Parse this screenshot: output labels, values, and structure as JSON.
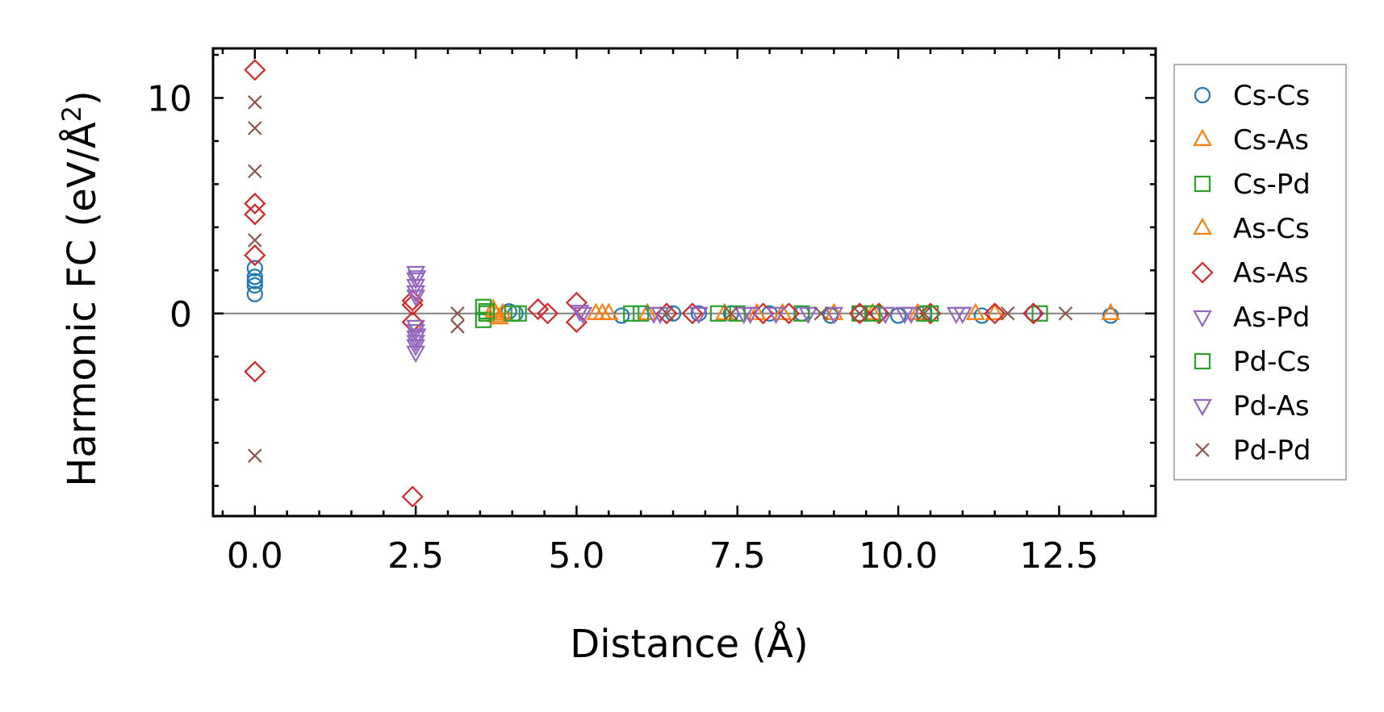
{
  "chart_data": {
    "type": "scatter",
    "title": "",
    "xlabel": "Distance (Å)",
    "ylabel_main": "Harmonic FC (eV/Å",
    "ylabel_sup": "2",
    "ylabel_close": ")",
    "xlim": [
      -0.65,
      14.0
    ],
    "ylim": [
      -9.4,
      12.3
    ],
    "xticks": [
      0.0,
      2.5,
      5.0,
      7.5,
      10.0,
      12.5
    ],
    "xtick_labels": [
      "0.0",
      "2.5",
      "5.0",
      "7.5",
      "10.0",
      "12.5"
    ],
    "yticks": [
      0,
      10
    ],
    "ytick_labels": [
      "0",
      "10"
    ],
    "legend_position": "outside-right",
    "series": [
      {
        "name": "Cs-Cs",
        "marker": "circle",
        "color": "#1f77b4",
        "points": [
          [
            0.0,
            2.1
          ],
          [
            0.0,
            1.7
          ],
          [
            0.0,
            1.5
          ],
          [
            0.0,
            1.3
          ],
          [
            0.0,
            0.9
          ],
          [
            3.95,
            0.1
          ],
          [
            4.05,
            0.0
          ],
          [
            5.7,
            -0.1
          ],
          [
            6.5,
            0.0
          ],
          [
            6.9,
            0.0
          ],
          [
            7.4,
            0.0
          ],
          [
            8.0,
            0.0
          ],
          [
            8.5,
            0.0
          ],
          [
            8.95,
            -0.1
          ],
          [
            9.7,
            0.0
          ],
          [
            10.0,
            -0.1
          ],
          [
            10.4,
            0.0
          ],
          [
            11.3,
            -0.1
          ],
          [
            12.1,
            0.0
          ],
          [
            13.3,
            -0.1
          ]
        ]
      },
      {
        "name": "Cs-As",
        "marker": "triangle-up",
        "color": "#ff7f0e",
        "points": [
          [
            3.7,
            0.2
          ],
          [
            3.75,
            -0.1
          ],
          [
            3.85,
            0.0
          ],
          [
            5.3,
            0.0
          ],
          [
            5.5,
            0.0
          ],
          [
            7.3,
            0.0
          ],
          [
            8.2,
            0.0
          ],
          [
            9.6,
            0.0
          ],
          [
            11.2,
            0.0
          ],
          [
            13.3,
            0.0
          ]
        ]
      },
      {
        "name": "Cs-Pd",
        "marker": "square",
        "color": "#2ca02c",
        "points": [
          [
            3.55,
            0.3
          ],
          [
            3.55,
            -0.3
          ],
          [
            3.6,
            0.0
          ],
          [
            4.1,
            0.0
          ],
          [
            5.85,
            0.0
          ],
          [
            7.2,
            0.0
          ],
          [
            8.5,
            0.0
          ],
          [
            9.4,
            0.0
          ],
          [
            10.4,
            0.0
          ],
          [
            12.2,
            0.0
          ]
        ]
      },
      {
        "name": "As-Cs",
        "marker": "triangle-up",
        "color": "#ff7f0e",
        "points": [
          [
            3.72,
            0.1
          ],
          [
            3.8,
            -0.2
          ],
          [
            5.4,
            0.0
          ],
          [
            6.1,
            0.0
          ],
          [
            7.8,
            0.0
          ],
          [
            9.0,
            0.0
          ],
          [
            10.3,
            0.0
          ],
          [
            11.5,
            0.0
          ]
        ]
      },
      {
        "name": "As-As",
        "marker": "diamond",
        "color": "#d62728",
        "points": [
          [
            0.0,
            11.3
          ],
          [
            0.0,
            5.1
          ],
          [
            0.0,
            4.6
          ],
          [
            0.0,
            2.7
          ],
          [
            0.0,
            -2.7
          ],
          [
            2.45,
            0.6
          ],
          [
            2.45,
            0.4
          ],
          [
            2.45,
            -0.4
          ],
          [
            2.45,
            -8.5
          ],
          [
            4.4,
            0.2
          ],
          [
            4.55,
            0.0
          ],
          [
            5.0,
            0.5
          ],
          [
            5.0,
            -0.4
          ],
          [
            6.4,
            0.0
          ],
          [
            6.8,
            0.0
          ],
          [
            7.9,
            0.0
          ],
          [
            8.3,
            0.0
          ],
          [
            9.4,
            0.0
          ],
          [
            9.7,
            0.0
          ],
          [
            10.5,
            0.0
          ],
          [
            11.5,
            0.0
          ],
          [
            12.1,
            0.0
          ]
        ]
      },
      {
        "name": "As-Pd",
        "marker": "triangle-down",
        "color": "#9467bd",
        "points": [
          [
            2.5,
            1.9
          ],
          [
            2.5,
            1.6
          ],
          [
            2.5,
            1.3
          ],
          [
            2.5,
            1.0
          ],
          [
            2.5,
            0.8
          ],
          [
            2.5,
            -0.6
          ],
          [
            2.5,
            -0.8
          ],
          [
            2.5,
            -1.1
          ],
          [
            2.5,
            -1.3
          ],
          [
            2.5,
            -1.5
          ],
          [
            2.5,
            -1.8
          ],
          [
            5.1,
            0.0
          ],
          [
            6.2,
            0.0
          ],
          [
            6.9,
            0.0
          ],
          [
            7.7,
            0.0
          ],
          [
            8.1,
            0.0
          ],
          [
            9.0,
            0.0
          ],
          [
            9.8,
            0.0
          ],
          [
            10.2,
            0.0
          ],
          [
            10.9,
            0.0
          ]
        ]
      },
      {
        "name": "Pd-Cs",
        "marker": "square",
        "color": "#2ca02c",
        "points": [
          [
            3.6,
            0.1
          ],
          [
            4.0,
            0.0
          ],
          [
            6.0,
            0.0
          ],
          [
            7.5,
            0.0
          ],
          [
            9.6,
            0.0
          ],
          [
            10.5,
            0.0
          ]
        ]
      },
      {
        "name": "Pd-As",
        "marker": "triangle-down",
        "color": "#9467bd",
        "points": [
          [
            2.52,
            1.7
          ],
          [
            2.52,
            -1.0
          ],
          [
            5.05,
            0.1
          ],
          [
            6.3,
            0.0
          ],
          [
            7.6,
            0.0
          ],
          [
            8.6,
            0.0
          ],
          [
            10.1,
            0.0
          ],
          [
            11.0,
            0.0
          ]
        ]
      },
      {
        "name": "Pd-Pd",
        "marker": "x",
        "color": "#8c564b",
        "points": [
          [
            0.0,
            9.8
          ],
          [
            0.0,
            8.6
          ],
          [
            0.0,
            6.6
          ],
          [
            0.0,
            3.4
          ],
          [
            0.0,
            -6.6
          ],
          [
            3.15,
            0.0
          ],
          [
            3.15,
            -0.6
          ],
          [
            6.4,
            0.0
          ],
          [
            7.4,
            0.0
          ],
          [
            8.8,
            0.0
          ],
          [
            9.4,
            0.0
          ],
          [
            10.4,
            0.0
          ],
          [
            11.7,
            0.0
          ],
          [
            12.6,
            0.0
          ]
        ]
      }
    ]
  }
}
